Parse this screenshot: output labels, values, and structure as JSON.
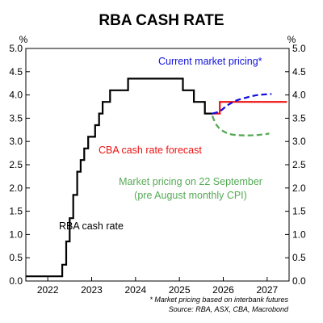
{
  "chart_data": {
    "type": "line",
    "title": "RBA CASH RATE",
    "y_unit_left": "%",
    "y_unit_right": "%",
    "ylim": [
      0.0,
      5.0
    ],
    "xlim": [
      2021.5,
      2027.5
    ],
    "y_ticks": [
      "0.0",
      "0.5",
      "1.0",
      "1.5",
      "2.0",
      "2.5",
      "3.0",
      "3.5",
      "4.0",
      "4.5",
      "5.0"
    ],
    "x_ticks": [
      {
        "label": "2022",
        "center": 2022.0
      },
      {
        "label": "2023",
        "center": 2023.0
      },
      {
        "label": "2024",
        "center": 2024.0
      },
      {
        "label": "2025",
        "center": 2025.0
      },
      {
        "label": "2026",
        "center": 2026.0
      },
      {
        "label": "2027",
        "center": 2027.0
      }
    ],
    "grid": false,
    "series": [
      {
        "name": "RBA cash rate",
        "color": "#000000",
        "style": "step-solid",
        "points": [
          [
            2021.5,
            0.1
          ],
          [
            2022.33,
            0.1
          ],
          [
            2022.33,
            0.35
          ],
          [
            2022.42,
            0.35
          ],
          [
            2022.42,
            0.85
          ],
          [
            2022.5,
            0.85
          ],
          [
            2022.5,
            1.35
          ],
          [
            2022.58,
            1.35
          ],
          [
            2022.58,
            1.85
          ],
          [
            2022.67,
            1.85
          ],
          [
            2022.67,
            2.35
          ],
          [
            2022.75,
            2.35
          ],
          [
            2022.75,
            2.6
          ],
          [
            2022.83,
            2.6
          ],
          [
            2022.83,
            2.85
          ],
          [
            2022.92,
            2.85
          ],
          [
            2022.92,
            3.1
          ],
          [
            2023.08,
            3.1
          ],
          [
            2023.08,
            3.35
          ],
          [
            2023.17,
            3.35
          ],
          [
            2023.17,
            3.6
          ],
          [
            2023.25,
            3.6
          ],
          [
            2023.25,
            3.85
          ],
          [
            2023.42,
            3.85
          ],
          [
            2023.42,
            4.1
          ],
          [
            2023.83,
            4.1
          ],
          [
            2023.83,
            4.35
          ],
          [
            2025.08,
            4.35
          ],
          [
            2025.08,
            4.1
          ],
          [
            2025.33,
            4.1
          ],
          [
            2025.33,
            3.85
          ],
          [
            2025.58,
            3.85
          ],
          [
            2025.58,
            3.6
          ],
          [
            2025.75,
            3.6
          ]
        ]
      },
      {
        "name": "CBA cash rate forecast",
        "color": "#ee1111",
        "style": "step-solid",
        "points": [
          [
            2025.75,
            3.6
          ],
          [
            2025.92,
            3.6
          ],
          [
            2025.92,
            3.85
          ],
          [
            2027.45,
            3.85
          ]
        ]
      },
      {
        "name": "Current market pricing*",
        "color": "#1111dd",
        "style": "dashed",
        "points": [
          [
            2025.75,
            3.6
          ],
          [
            2025.92,
            3.65
          ],
          [
            2026.1,
            3.78
          ],
          [
            2026.3,
            3.88
          ],
          [
            2026.55,
            3.95
          ],
          [
            2026.8,
            4.0
          ],
          [
            2027.1,
            4.02
          ]
        ]
      },
      {
        "name": "Market pricing on 22 September (pre August monthly CPI)",
        "color": "#55aa55",
        "style": "dashed",
        "points": [
          [
            2025.75,
            3.55
          ],
          [
            2025.85,
            3.35
          ],
          [
            2026.0,
            3.22
          ],
          [
            2026.2,
            3.15
          ],
          [
            2026.5,
            3.13
          ],
          [
            2026.8,
            3.14
          ],
          [
            2027.05,
            3.17
          ]
        ]
      }
    ],
    "annotations": {
      "current_pricing": "Current market pricing*",
      "cba_forecast": "CBA cash rate forecast",
      "sept_pricing_line1": "Market pricing on 22 September",
      "sept_pricing_line2": "(pre August monthly CPI)",
      "rba_rate": "RBA cash rate"
    },
    "footnote": "* Market pricing based on interbank futures",
    "source": "Source: RBA, ASX, CBA, Macrobond"
  }
}
